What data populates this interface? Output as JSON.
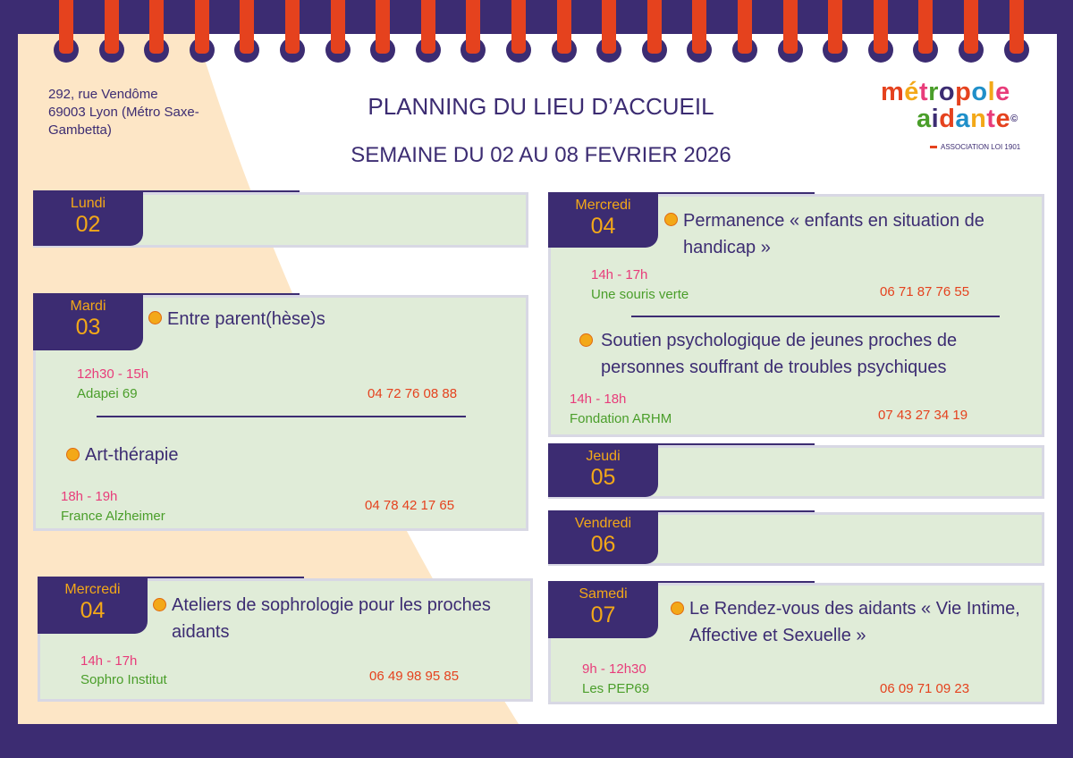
{
  "address": [
    "292, rue Vendôme",
    "69003 Lyon (Métro Saxe-",
    "Gambetta)"
  ],
  "title": "PLANNING DU LIEU D’ACCUEIL",
  "subtitle": "SEMAINE DU 02 AU 08 FEVRIER 2026",
  "logo": {
    "line1_letters": [
      "m",
      "é",
      "t",
      "r",
      "o",
      "p",
      "o",
      "l",
      "e"
    ],
    "line2_letters": [
      "a",
      "i",
      "d",
      "a",
      "n",
      "t",
      "e"
    ],
    "mark": "©",
    "tagline": "ASSOCIATION LOI 1901"
  },
  "colors": {
    "frame": "#3c2c72",
    "rings": "#e5421e",
    "box": "#e0ecd8",
    "curve": "#fde6c6",
    "accent": "#f3a818",
    "time": "#e83c7a",
    "org": "#4a9e2a",
    "phone": "#e5421e",
    "logo_letters": [
      "#e5421e",
      "#f3a818",
      "#e83c7a",
      "#4a9e2a",
      "#3c2c72",
      "#e5421e",
      "#1f8fc9",
      "#f3a818",
      "#e83c7a"
    ]
  },
  "days": {
    "lundi": {
      "name": "Lundi",
      "num": "02"
    },
    "mardi": {
      "name": "Mardi",
      "num": "03",
      "events": [
        {
          "title": "Entre parent(hèse)s",
          "time": "12h30 - 15h",
          "org": "Adapei 69",
          "phone": "04 72 76 08 88"
        },
        {
          "title": "Art-thérapie",
          "time": "18h - 19h",
          "org": "France Alzheimer",
          "phone": "04 78 42 17 65"
        }
      ]
    },
    "mercredi_left": {
      "name": "Mercredi",
      "num": "04",
      "events": [
        {
          "title_l1": "Ateliers de sophrologie pour les proches",
          "title_l2": "aidants",
          "time": "14h - 17h",
          "org": "Sophro Institut",
          "phone": "06 49 98 95 85"
        }
      ]
    },
    "mercredi_right": {
      "name": "Mercredi",
      "num": "04",
      "events": [
        {
          "title_l1": "Permanence « enfants en situation de",
          "title_l2": "handicap »",
          "time": "14h - 17h",
          "org": "Une souris verte",
          "phone": "06 71 87 76 55"
        },
        {
          "title_l1": "Soutien psychologique de jeunes proches de",
          "title_l2": "personnes souffrant de troubles psychiques",
          "time": "14h - 18h",
          "org": "Fondation ARHM",
          "phone": "07 43 27 34 19"
        }
      ]
    },
    "jeudi": {
      "name": "Jeudi",
      "num": "05"
    },
    "vendredi": {
      "name": "Vendredi",
      "num": "06"
    },
    "samedi": {
      "name": "Samedi",
      "num": "07",
      "events": [
        {
          "title_l1": "Le Rendez-vous des aidants « Vie Intime,",
          "title_l2": "Affective et Sexuelle »",
          "time": "9h - 12h30",
          "org": "Les PEP69",
          "phone": "06 09 71 09 23"
        }
      ]
    }
  }
}
